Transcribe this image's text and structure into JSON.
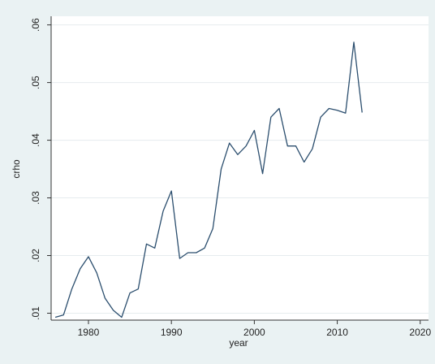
{
  "chart_data": {
    "type": "line",
    "title": "",
    "xlabel": "year",
    "ylabel": "crho",
    "xlim": [
      1975.5,
      2021
    ],
    "ylim": [
      0.0088,
      0.0615
    ],
    "x_ticks": [
      1980,
      1990,
      2000,
      2010,
      2020
    ],
    "x_tick_labels": [
      "1980",
      "1990",
      "2000",
      "2010",
      "2020"
    ],
    "y_ticks": [
      0.01,
      0.02,
      0.03,
      0.04,
      0.05,
      0.06
    ],
    "y_tick_labels": [
      ".01",
      ".02",
      ".03",
      ".04",
      ".05",
      ".06"
    ],
    "grid": "horizontal",
    "legend": "none",
    "colors": {
      "line": "#2b4e6e",
      "plot_background": "#ffffff",
      "outer_background": "#eaf2f3",
      "grid": "#e6ecee",
      "axis": "#333333"
    },
    "series": [
      {
        "x": [
          1976,
          1977,
          1978,
          1979,
          1980,
          1981,
          1982,
          1983,
          1984,
          1985,
          1986,
          1987,
          1988,
          1989,
          1990,
          1991,
          1992,
          1993,
          1994,
          1995,
          1996,
          1997,
          1998,
          1999,
          2000,
          2001,
          2002,
          2003,
          2004,
          2005,
          2006,
          2007,
          2008,
          2009,
          2010,
          2011,
          2012,
          2013
        ],
        "y": [
          0.0093,
          0.0097,
          0.0142,
          0.0177,
          0.0198,
          0.017,
          0.0126,
          0.0105,
          0.0093,
          0.0135,
          0.0142,
          0.022,
          0.0213,
          0.0277,
          0.0312,
          0.0195,
          0.0205,
          0.0205,
          0.0213,
          0.0247,
          0.035,
          0.0395,
          0.0375,
          0.039,
          0.0417,
          0.0342,
          0.044,
          0.0455,
          0.039,
          0.039,
          0.0362,
          0.0385,
          0.044,
          0.0455,
          0.0452,
          0.0447,
          0.057,
          0.0448
        ]
      }
    ]
  }
}
